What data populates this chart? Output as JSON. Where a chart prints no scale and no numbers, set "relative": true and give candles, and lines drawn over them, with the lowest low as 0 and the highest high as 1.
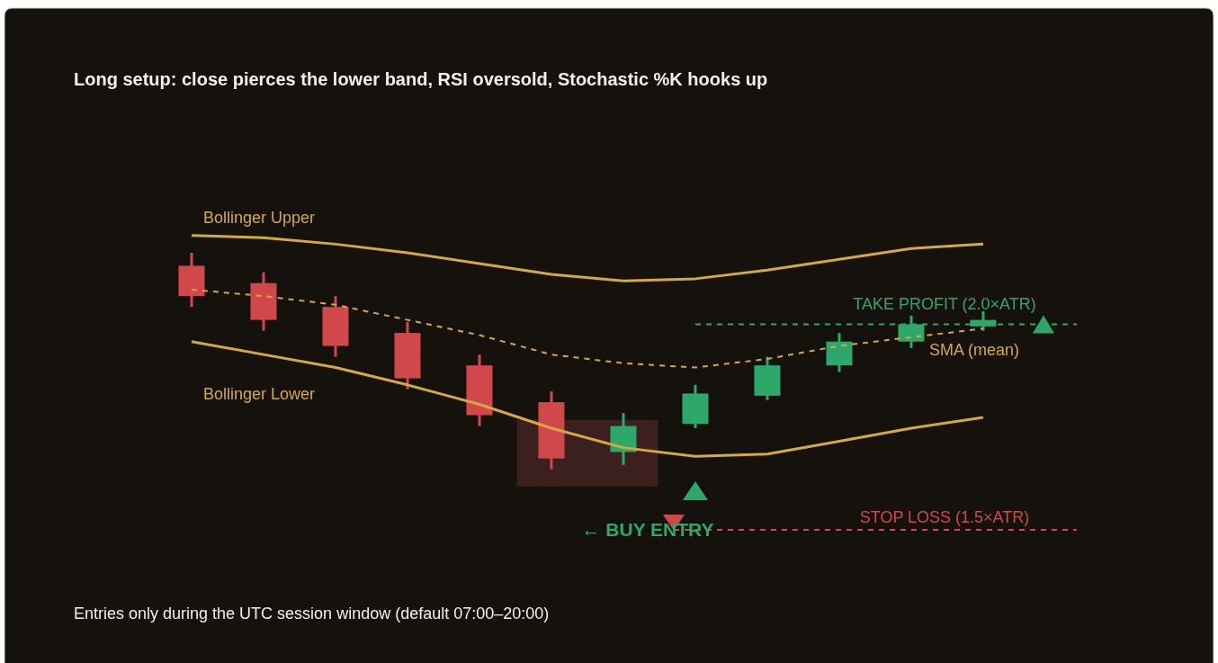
{
  "chart_data": {
    "type": "candlestick",
    "title": "Long setup: close pierces the lower band, RSI oversold, Stochastic %K hooks up",
    "relative": true,
    "categories": [
      null,
      null,
      null,
      null,
      null,
      null,
      null,
      null,
      null,
      null,
      null,
      null
    ],
    "ohlc": [
      [
        0.94,
        1,
        0.75,
        0.8
      ],
      [
        0.86,
        0.91,
        0.64,
        0.69
      ],
      [
        0.75,
        0.8,
        0.52,
        0.57
      ],
      [
        0.63,
        0.68,
        0.37,
        0.42
      ],
      [
        0.48,
        0.53,
        0.2,
        0.25
      ],
      [
        0.31,
        0.36,
        0,
        0.05
      ],
      [
        0.08,
        0.26,
        0.02,
        0.2
      ],
      [
        0.21,
        0.39,
        0.19,
        0.35
      ],
      [
        0.34,
        0.52,
        0.32,
        0.48
      ],
      [
        0.48,
        0.63,
        0.45,
        0.59
      ],
      [
        0.59,
        0.71,
        0.56,
        0.67
      ],
      [
        0.66,
        0.73,
        0.64,
        0.69
      ]
    ],
    "colors": [
      "#d0484a",
      "#d0484a",
      "#d0484a",
      "#d0484a",
      "#d0484a",
      "#d0484a",
      "#2ea86a",
      "#2ea86a",
      "#2ea86a",
      "#2ea86a",
      "#2ea86a",
      "#2ea86a"
    ],
    "series": [
      {
        "type": "line",
        "name": "Bollinger Upper",
        "color": "#d6a940",
        "values": [
          1.08,
          1.07,
          1.04,
          1.0,
          0.95,
          0.9,
          0.87,
          0.88,
          0.92,
          0.97,
          1.02,
          1.04
        ]
      },
      {
        "type": "line",
        "name": "SMA (mean)",
        "color": "#d6a940",
        "line_style": "dashed",
        "values": [
          0.83,
          0.8,
          0.76,
          0.69,
          0.62,
          0.53,
          0.49,
          0.47,
          0.51,
          0.57,
          0.61,
          0.65
        ]
      },
      {
        "type": "line",
        "name": "Bollinger Lower",
        "color": "#d6a940",
        "values": [
          0.59,
          0.53,
          0.47,
          0.39,
          0.3,
          0.19,
          0.1,
          0.06,
          0.07,
          0.13,
          0.19,
          0.24
        ]
      }
    ],
    "ref_lines": [
      {
        "axis": "y",
        "value": 0.67,
        "label": "TAKE PROFIT (2.0×ATR)",
        "color": "#2ea86a",
        "line_style": "dashed"
      },
      {
        "axis": "y",
        "value": -0.28,
        "label": "STOP LOSS (1.5×ATR)",
        "color": "#d0484a",
        "line_style": "dashed"
      }
    ],
    "annotations": [
      "← BUY ENTRY",
      "Entries only during the UTC session window (default 07:00–20:00)"
    ]
  }
}
